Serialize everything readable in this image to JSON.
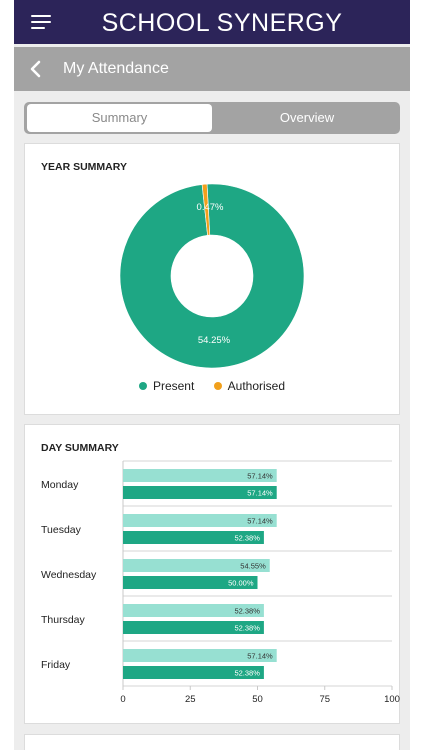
{
  "header": {
    "brand": "SCHOOL SYNERGY",
    "menu_icon": "hamburger-menu-icon"
  },
  "subheader": {
    "title": "My Attendance",
    "back_icon": "chevron-left-icon"
  },
  "tabs": [
    {
      "label": "Summary",
      "active": true
    },
    {
      "label": "Overview",
      "active": false
    }
  ],
  "year_summary": {
    "title": "YEAR SUMMARY",
    "present_label_text": "54.25%",
    "authorised_label_text": "0.47%",
    "legend": [
      {
        "label": "Present",
        "color": "#1ea784"
      },
      {
        "label": "Authorised",
        "color": "#f1a01c"
      }
    ]
  },
  "day_summary": {
    "title": "DAY SUMMARY"
  },
  "chart_data": [
    {
      "type": "pie",
      "title": "YEAR SUMMARY",
      "labels": [
        "Present",
        "Authorised"
      ],
      "values": [
        54.25,
        0.47
      ],
      "colors": [
        "#1ea784",
        "#f1a01c"
      ]
    },
    {
      "type": "bar",
      "orientation": "horizontal",
      "title": "DAY SUMMARY",
      "categories": [
        "Monday",
        "Tuesday",
        "Wednesday",
        "Thursday",
        "Friday"
      ],
      "series": [
        {
          "values": [
            57.14,
            57.14,
            54.55,
            52.38,
            57.14
          ],
          "labels": [
            "57.14%",
            "57.14%",
            "54.55%",
            "52.38%",
            "57.14%"
          ],
          "color": "#97e0d2"
        },
        {
          "values": [
            57.14,
            52.38,
            50.0,
            52.38,
            52.38
          ],
          "labels": [
            "57.14%",
            "52.38%",
            "50.00%",
            "52.38%",
            "52.38%"
          ],
          "color": "#1ea784"
        }
      ],
      "xlim": [
        0,
        100
      ],
      "xticks": [
        "0",
        "25",
        "50",
        "75",
        "100"
      ],
      "grid": true
    }
  ]
}
